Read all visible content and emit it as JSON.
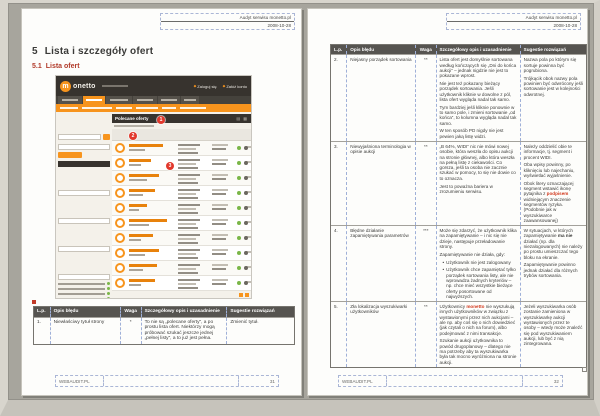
{
  "doc": {
    "header": {
      "title": "Audyt serwisu monetto.pl",
      "date": "2008-10-28"
    },
    "footer_brand": "WEBAUDIT.PL"
  },
  "page_left": {
    "heading": {
      "number": "5",
      "text": "Lista i szczegóły ofert"
    },
    "subheading": {
      "number": "5.1",
      "text": "Lista ofert"
    },
    "footer_page": "31",
    "screenshot": {
      "logo_m": "m",
      "logo_rest": "onetto",
      "login": "Zaloguj się",
      "register": "Załóż konto",
      "panel_title": "Polecane oferty",
      "annotations": [
        "1",
        "2",
        "3"
      ],
      "icons": {
        "action_bullet": "◆",
        "list_view": "▤",
        "grid_view": "▦"
      },
      "offer_count": 10,
      "accent_orange": "#f7941d",
      "annotation_red": "#e2382c"
    },
    "table": {
      "headers": [
        "L.p.",
        "Opis błędu",
        "Waga",
        "Szczegółowy opis i uzasadnienie",
        "Sugestie rozwiązań"
      ],
      "rows": [
        {
          "no": "1.",
          "issue": "Niewłaściwy tytuł strony",
          "weight": "*",
          "desc": [
            "To nie są „polecane oferty”, a po prostu lista ofert. Niektórzy mogą próbować szukać jeszcze jednej „pełnej listy”, a to już jest pełna."
          ],
          "fix": [
            "Zmienić tytuł."
          ]
        }
      ]
    }
  },
  "page_right": {
    "footer_page": "32",
    "table": {
      "headers": [
        "L.p.",
        "Opis błędu",
        "Waga",
        "Szczegółowy opis i uzasadnienie",
        "Sugestie rozwiązań"
      ],
      "rows": [
        {
          "no": "2.",
          "issue": "Niejasny porządek sortowania",
          "weight": "**",
          "desc": [
            "Lista ofert jest domyślnie sortowana według kończących się „Dni do końca aukcji” – jednak nigdzie nie jest to pokazane wprost.",
            "Nie jest też pokazany bieżący porządek sortowania. Jeśli użytkownik kliknie w dowolne z pól, lista ofert wygląda nadal tak samo.",
            "Tym bardziej jeśli kliknie ponownie w to samo pole, i zmieni sortowanie „od końca”, to kolumna wygląda nadal tak samo.",
            "W ten sposób PD nigdy nie jest pewien jaką listę widzi."
          ],
          "fix": [
            "Nazwa pola po którym się sortuje powinna być pogrubiona.",
            "Trójkącik obok nazwy pola powinien być odwrócony jeśli sortowanie jest w kolejności odwrotnej."
          ]
        },
        {
          "no": "3.",
          "issue": "Niewyjaśniona terminologia w opisie aukcji",
          "weight": "**",
          "desc": [
            "„B 64%, WIDI” nic nie mówi nowej osobie, która weszła do opisu aukcji na stronie głównej, albo która weszła na pełną listę z ciekawości. Co gorsza, jeśli ta osoba nie zacznie szukać w pomocy, to się nie dowie co to oznacza.",
            "Jest to poważna bariera w zrozumieniu serwisu."
          ],
          "fix": [
            "Należy oddzielić obie te informacje, tj. segment i procent WIDI.",
            "Oba wpisy powinny, po kliknięciu lub najechaniu, wyświetlać wyjaśnienie.",
            "Obok litery oznaczającej segment wstawić ikonę pytajnika z [[podpisem]] widniejącym znaczenie segmentów ryzyka. (Podobnie jak w wyszukiwarce zaawansowanej)"
          ]
        },
        {
          "no": "4.",
          "issue": "Błędne działanie zapamiętywania parametrów",
          "weight": "***",
          "desc": [
            "Może się zdarzyć, że użytkownik klika na zapamiętywanie – i nic się nie dzieje, następuje przeładowanie strony.",
            "Zapamiętywanie nie działa, gdy:",
            {
              "b": true,
              "t": "Użytkownik nie jest zalogowany"
            },
            {
              "b": true,
              "t": "Użytkownik chce zapamiętać tylko porządek sortowania listy, ale nie wprowadza żadnych kryteriów – np. chce mieć wszystkie bieżące oferty posortowane od najwyższych."
            }
          ],
          "fix": [
            "W sytuacjach, w których zapamiętywanie {{ma nie}} działać (np. dla niezalogowanych) nie należy po prostu umieszczać tego bloku na ekranie.",
            "Zapamiętywanie powinno jednak działać dla różnych trybów sortowania."
          ]
        },
        {
          "no": "5.",
          "issue": "Zła lokalizacja wyszukiwarki użytkowników",
          "weight": "**",
          "desc": [
            "Użytkownicy [[monetto]] nie wyszukują innych użytkowników w związku z wystawionymi przez nich aukcjami – ale np. aby coś się o nich dowiedzieć (jak czytali o nich na forum), albo podejmować z nimi transakcje.",
            "Szukanie aukcji użytkownika to powód drugoplanowy – dlatego nie ma potrzeby aby ta wyszukiwarka była tak mocno wyróżniona na stronie aukcji."
          ],
          "fix": [
            "Jeżeli wyszukiwarka osób zostanie zamieniona w wyszukiwarkę aukcji wystawionych przez te osoby – wtedy może znaleźć się pod wyszukiwaniem aukcji, lub być z nią zintegrowana."
          ]
        }
      ]
    }
  }
}
